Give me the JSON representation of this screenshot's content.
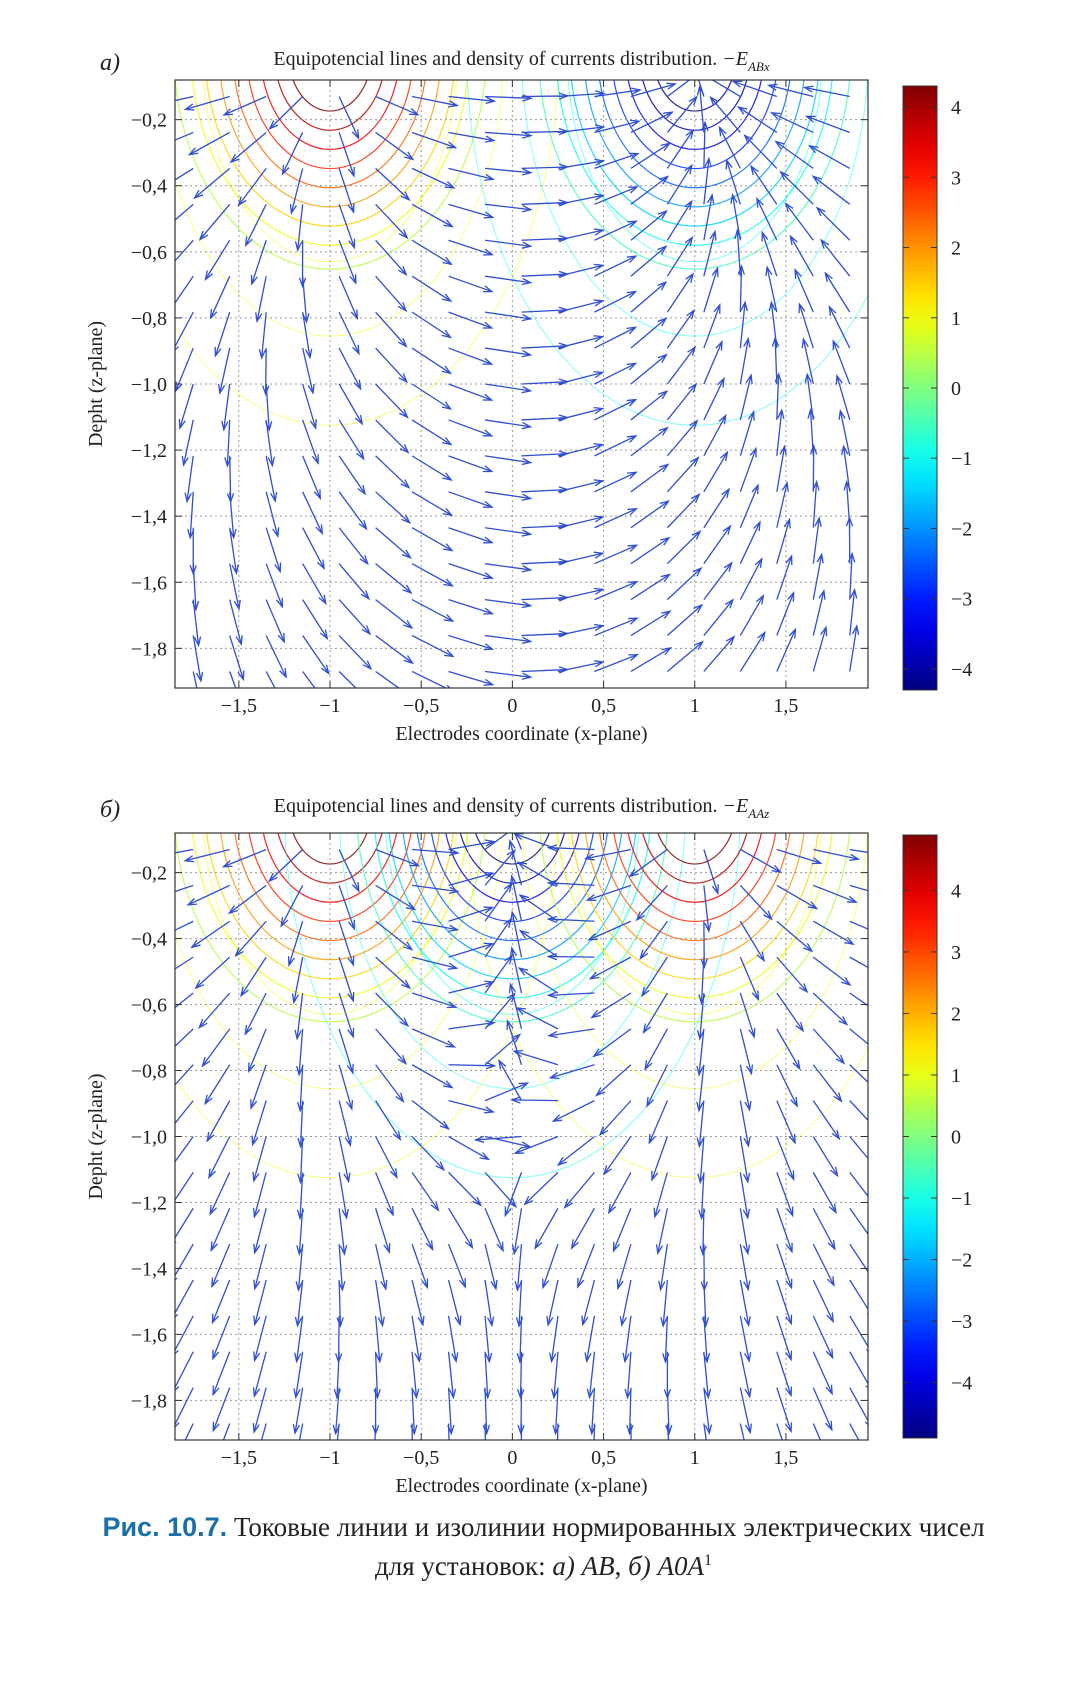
{
  "chart_data": [
    {
      "type": "quiver-contour",
      "panel_label": "a)",
      "title": "Equipotencial lines and density of currents distribution.",
      "title_math": "−E",
      "title_sub": "ABx",
      "xlabel": "Electrodes coordinate (x-plane)",
      "ylabel": "Depht (z-plane)",
      "xlim": [
        -1.85,
        1.95
      ],
      "ylim": [
        -1.92,
        -0.08
      ],
      "x_ticks": [
        -1.5,
        -1,
        -0.5,
        0,
        0.5,
        1,
        1.5
      ],
      "x_tick_labels": [
        "−1,5",
        "−1",
        "−0,5",
        "0",
        "0,5",
        "1",
        "1,5"
      ],
      "y_ticks": [
        -0.2,
        -0.4,
        -0.6,
        -0.8,
        -1.0,
        -1.2,
        -1.4,
        -1.6,
        -1.8
      ],
      "y_tick_labels": [
        "−0,2",
        "−0,4",
        "−0,6",
        "−0,8",
        "−1,0",
        "−1,2",
        "−1,4",
        "−1,6",
        "−1,8"
      ],
      "grid": true,
      "electrodes": [
        {
          "x": -1,
          "strength": 1
        },
        {
          "x": 1,
          "strength": -1
        }
      ],
      "colorbar": {
        "range": [
          -4.3,
          4.3
        ],
        "ticks": [
          4,
          3,
          2,
          1,
          0,
          -1,
          -2,
          -3,
          -4
        ],
        "tick_labels": [
          "4",
          "3",
          "2",
          "1",
          "0",
          "−1",
          "−2",
          "−3",
          "−4"
        ]
      }
    },
    {
      "type": "quiver-contour",
      "panel_label": "б)",
      "title": "Equipotencial lines and density of currents distribution.",
      "title_math": "−E",
      "title_sub": "AAz",
      "xlabel": "Electrodes coordinate (x-plane)",
      "ylabel": "Depht (z-plane)",
      "xlim": [
        -1.85,
        1.95
      ],
      "ylim": [
        -1.92,
        -0.08
      ],
      "x_ticks": [
        -1.5,
        -1,
        -0.5,
        0,
        0.5,
        1,
        1.5
      ],
      "x_tick_labels": [
        "−1,5",
        "−1",
        "−0,5",
        "0",
        "0,5",
        "1",
        "1,5"
      ],
      "y_ticks": [
        -0.2,
        -0.4,
        -0.6,
        -0.8,
        -1.0,
        -1.2,
        -1.4,
        -1.6,
        -1.8
      ],
      "y_tick_labels": [
        "−0,2",
        "−0,4",
        "−0,6",
        "−0,8",
        "−1,0",
        "−1,2",
        "−1,4",
        "−1,6",
        "−1,8"
      ],
      "grid": true,
      "electrodes": [
        {
          "x": -1,
          "strength": 1
        },
        {
          "x": 0,
          "strength": -1
        },
        {
          "x": 1,
          "strength": 1
        }
      ],
      "colorbar": {
        "range": [
          -4.9,
          4.9
        ],
        "ticks": [
          4,
          3,
          2,
          1,
          0,
          -1,
          -2,
          -3,
          -4
        ],
        "tick_labels": [
          "4",
          "3",
          "2",
          "1",
          "0",
          "−1",
          "−2",
          "−3",
          "−4"
        ]
      }
    }
  ],
  "colors": {
    "arrow": "#2f4fd0",
    "grid": "#9a9a9a",
    "axis": "#333333",
    "caption_label": "#1a6fa8"
  },
  "caption": {
    "label": "Рис. 10.7.",
    "line1": "Токовые линии и изолинии нормированных электрических чисел",
    "line2_prefix": "для установок:",
    "item_a_label": "а)",
    "item_a_value": "AB",
    "separator": ",",
    "item_b_label": "б)",
    "item_b_value": "A0A",
    "item_b_sup": "1"
  }
}
